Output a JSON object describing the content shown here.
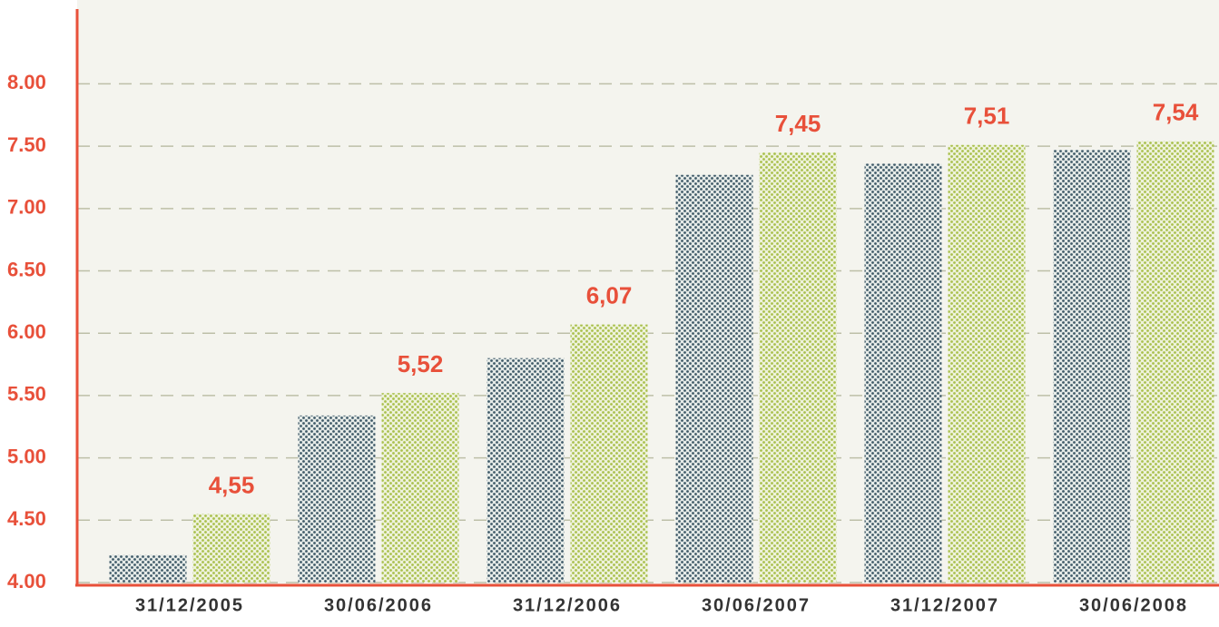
{
  "chart_data": {
    "type": "bar",
    "categories": [
      "31/12/2005",
      "30/06/2006",
      "31/12/2006",
      "30/06/2007",
      "31/12/2007",
      "30/06/2008"
    ],
    "series": [
      {
        "color": "#3f5a68",
        "values": [
          4.22,
          5.34,
          5.8,
          7.27,
          7.36,
          7.47
        ]
      },
      {
        "color": "#a9c04c",
        "values": [
          4.55,
          5.52,
          6.07,
          7.45,
          7.51,
          7.54
        ],
        "value_labels": [
          "4,55",
          "5,52",
          "6,07",
          "7,45",
          "7,51",
          "7,54"
        ]
      }
    ],
    "ylim": [
      4,
      8.6
    ],
    "yticks": [
      {
        "value": 4,
        "label": "4.00"
      },
      {
        "value": 4.5,
        "label": "4.50"
      },
      {
        "value": 5,
        "label": "5.00"
      },
      {
        "value": 5.5,
        "label": "5.50"
      },
      {
        "value": 6,
        "label": "6.00"
      },
      {
        "value": 6.5,
        "label": "6.50"
      },
      {
        "value": 7,
        "label": "7.00"
      },
      {
        "value": 7.5,
        "label": "7.50"
      },
      {
        "value": 8,
        "label": "8.00"
      }
    ],
    "grid": true
  }
}
